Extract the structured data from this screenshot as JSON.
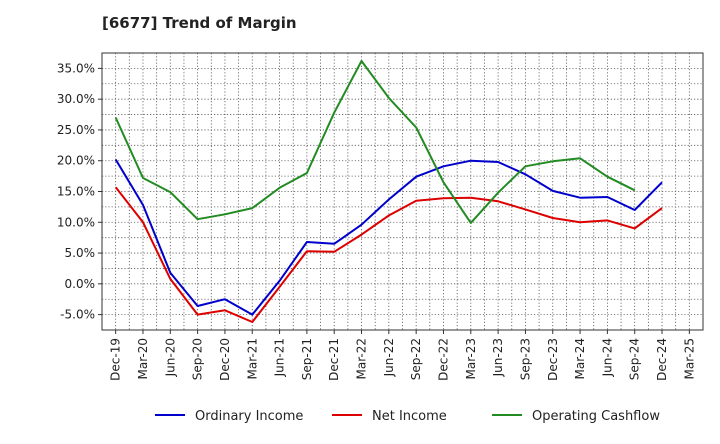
{
  "chart_data": {
    "type": "line",
    "title": "[6677]  Trend of Margin",
    "xlabel": "",
    "ylabel": "",
    "x": [
      "Dec-19",
      "Mar-20",
      "Jun-20",
      "Sep-20",
      "Dec-20",
      "Mar-21",
      "Jun-21",
      "Sep-21",
      "Dec-21",
      "Mar-22",
      "Jun-22",
      "Sep-22",
      "Dec-22",
      "Mar-23",
      "Jun-23",
      "Sep-23",
      "Dec-23",
      "Mar-24",
      "Jun-24",
      "Sep-24",
      "Dec-24",
      "Mar-25"
    ],
    "ylim": [
      -7.5,
      37.5
    ],
    "yticks": [
      -5,
      0,
      5,
      10,
      15,
      20,
      25,
      30,
      35
    ],
    "ytick_labels": [
      "-5.0%",
      "0.0%",
      "5.0%",
      "10.0%",
      "15.0%",
      "20.0%",
      "25.0%",
      "30.0%",
      "35.0%"
    ],
    "grid": true,
    "legend_position": "bottom",
    "series": [
      {
        "name": "Ordinary Income",
        "color": "#0000cc",
        "values": [
          20.2,
          12.8,
          1.8,
          -3.6,
          -2.5,
          -5.0,
          0.5,
          6.8,
          6.5,
          9.6,
          13.7,
          17.4,
          19.1,
          20.0,
          19.8,
          17.8,
          15.1,
          14.0,
          14.1,
          12.0,
          16.5,
          null
        ]
      },
      {
        "name": "Net Income",
        "color": "#dd0000",
        "values": [
          15.7,
          10.0,
          0.8,
          -5.0,
          -4.3,
          -6.2,
          -0.5,
          5.3,
          5.2,
          8.0,
          11.1,
          13.5,
          13.9,
          14.0,
          13.4,
          12.1,
          10.7,
          10.0,
          10.3,
          9.0,
          12.3,
          null
        ]
      },
      {
        "name": "Operating Cashflow",
        "color": "#228b22",
        "values": [
          27.0,
          17.2,
          14.9,
          10.5,
          11.3,
          12.3,
          15.6,
          18.0,
          27.8,
          36.2,
          30.2,
          25.4,
          16.5,
          9.9,
          14.8,
          19.1,
          19.9,
          20.4,
          17.4,
          15.2,
          null,
          null
        ]
      }
    ]
  }
}
